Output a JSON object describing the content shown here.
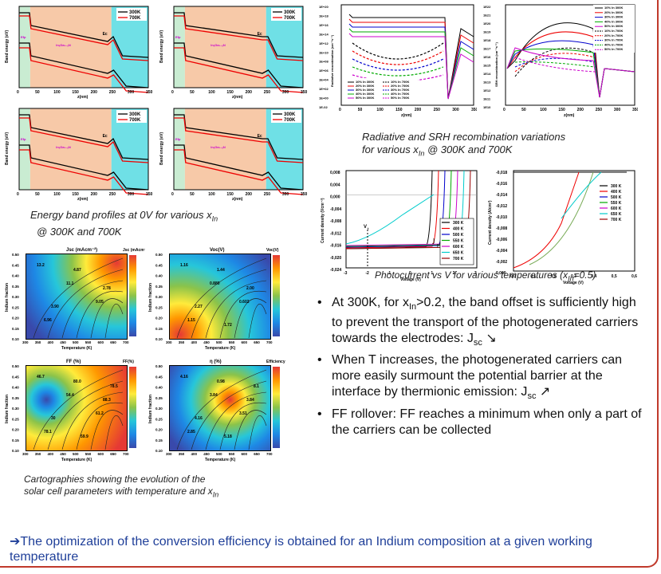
{
  "captions": {
    "band": [
      "Energy band profiles at 0V for various x",
      "In",
      "@ 300K and 700K"
    ],
    "recomb": [
      "Radiative and SRH recombination variations",
      "for various x",
      "In",
      "@ 300K and 700K"
    ],
    "photo": [
      "Photocurrent vs V  for various temperatures (x",
      "In",
      "=0.5)"
    ],
    "carto": [
      "Cartographies showing the evolution of the",
      "solar cell parameters with temperature and x",
      "In"
    ]
  },
  "band_plot": {
    "x_label": "z(nm)",
    "y_label": "Band energy (eV)",
    "legend": [
      "300K",
      "700K"
    ],
    "x_ticks": [
      "0",
      "50",
      "100",
      "150",
      "200",
      "250",
      "300",
      "350"
    ],
    "annot_ec": "Ec",
    "annot_ef": "Efp",
    "annot_mid": "InₓGa₁₋ₓN"
  },
  "recomb_plot": {
    "rad_y_label": "Radiative recombination (cm⁻³s⁻¹)",
    "srh_y_label": "SRH recombination (cm⁻³s⁻¹)",
    "x_label": "z(nm)",
    "rad_y_ticks": [
      "1E+20",
      "1E+18",
      "1E+16",
      "1E+14",
      "1E+12",
      "1E+10",
      "1E+08",
      "1E+06",
      "1E+04",
      "1E+02",
      "1E+00",
      "1E-02"
    ],
    "srh_y_ticks": [
      "1E22",
      "1E21",
      "1E20",
      "1E19",
      "1E18",
      "1E17",
      "1E16",
      "1E15",
      "1E14",
      "1E13",
      "1E12",
      "1E11",
      "1E10"
    ],
    "x_ticks": [
      "0",
      "50",
      "100",
      "150",
      "200",
      "250",
      "300",
      "350"
    ],
    "legend": [
      "10% In 300K",
      "20% In 300K",
      "30% In 300K",
      "40% In 300K",
      "50% In 300K",
      "10% In 700K",
      "20% In 700K",
      "30% In 700K",
      "40% In 700K",
      "50% In 700K"
    ]
  },
  "photo_plot": {
    "y_label": "Current density (Vcm⁻²)",
    "x_label": "Voltage (V)",
    "y_ticks": [
      "0,008",
      "0,004",
      "0,000",
      "-0,004",
      "-0,008",
      "-0,012",
      "-0,016",
      "-0,020",
      "-0,024"
    ],
    "x_ticks": [
      "-3",
      "-2",
      "-1",
      "0",
      "1",
      "2",
      "3"
    ],
    "legend": [
      "300 K",
      "400 K",
      "500 K",
      "550 K",
      "600 K",
      "650 K",
      "700 K"
    ],
    "jph": "J",
    "jph_sub": "ph",
    "vt": "V",
    "vt_sub": "t",
    "right_y_label": "Current density (A/cm²)",
    "right_x_label": "Voltage (V)",
    "right_y_ticks": [
      "-0,018",
      "-0,016",
      "-0,014",
      "-0,012",
      "-0,010",
      "-0,008",
      "-0,006",
      "-0,004",
      "-0,002",
      "0,000"
    ],
    "right_x_ticks": [
      "0,0",
      "0,1",
      "0,2",
      "0,3",
      "0,4",
      "0,5",
      "0,6"
    ],
    "right_legend": [
      "300 K",
      "400 K",
      "500 K",
      "550 K",
      "600 K",
      "650 K",
      "700 K"
    ]
  },
  "maps": {
    "jsc_title": "Jsc (mAcm⁻²)",
    "voc_title": "Voc(V)",
    "ff_title": "FF (%)",
    "eff_title": "η (%)",
    "eff_bar_title": "Efficiency",
    "jsc_bar_title": "Jsc (mAcm⁻²)",
    "voc_bar_title": "Voc(V)",
    "ff_bar_title": "FF(%)",
    "y_label": "Indium fraction",
    "x_label": "Temperature (K)",
    "x_ticks": [
      "300",
      "350",
      "400",
      "450",
      "500",
      "550",
      "600",
      "650",
      "700"
    ],
    "y_ticks": [
      "0.50",
      "0.45",
      "0.40",
      "0.35",
      "0.30",
      "0.25",
      "0.20",
      "0.15",
      "0.10"
    ],
    "jsc_labels": [
      "13.2",
      "11.1",
      "9.05",
      "6.96",
      "4.87",
      "2.78",
      "3.90"
    ],
    "voc_labels": [
      "1.16",
      "0.880",
      "0.602",
      "1.15",
      "1.44",
      "2.00",
      "2.27",
      "1.72"
    ],
    "ff_labels": [
      "46.7",
      "54.4",
      "61.2",
      "78.1",
      "80.0",
      "88.3",
      "30",
      "59.9",
      "78.5"
    ],
    "eff_labels": [
      "4.16",
      "3.84",
      "3.51",
      "2.85",
      "0.98",
      "3.84",
      "4.16",
      "5.18",
      "8.1"
    ]
  },
  "bullets": [
    {
      "pre": "At 300K, for x",
      "sub": "In",
      "post": ">0.2, the band offset is sufficiently high to prevent the transport of the photogenerated carriers towards the electrodes: J",
      "sub2": "sc",
      "arrow": "↘"
    },
    {
      "pre": "When T increases, the photogenerated carriers can more easily surmount the potential barrier at the interface by thermionic emission: J",
      "sub": "sc",
      "arrow": "↗"
    },
    {
      "pre": "FF rollover: FF reaches a minimum when only a part of the carriers can be collected"
    }
  ],
  "conclusion": "➔The optimization of the conversion efficiency is obtained for an Indium composition at a given working temperature",
  "colors": {
    "accent": "#c0392b",
    "conclusion": "#1f3f99",
    "peach": "#f7c9a8",
    "cyan": "#6fe0e6",
    "green": "#c9ecd2"
  }
}
